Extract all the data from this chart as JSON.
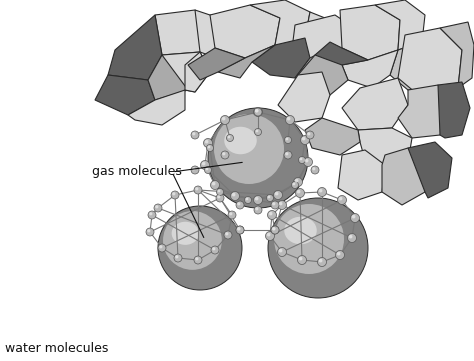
{
  "background_color": "#ffffff",
  "label_gas": "gas molecules",
  "label_water": "water molecules",
  "fig_width": 4.74,
  "fig_height": 3.61,
  "dpi": 100,
  "light_gray": "#d8d8d8",
  "mid_gray": "#aaaaaa",
  "dark_gray": "#777777",
  "darker_gray": "#606060",
  "edge_color": "#2a2a2a",
  "bond_color": "#777777",
  "node_fill": "#b8b8b8",
  "node_hi": "#e5e5e5",
  "sphere_base": "#828282",
  "sphere_mid": "#c8c8c8",
  "sphere_hi": "#eeeeee"
}
